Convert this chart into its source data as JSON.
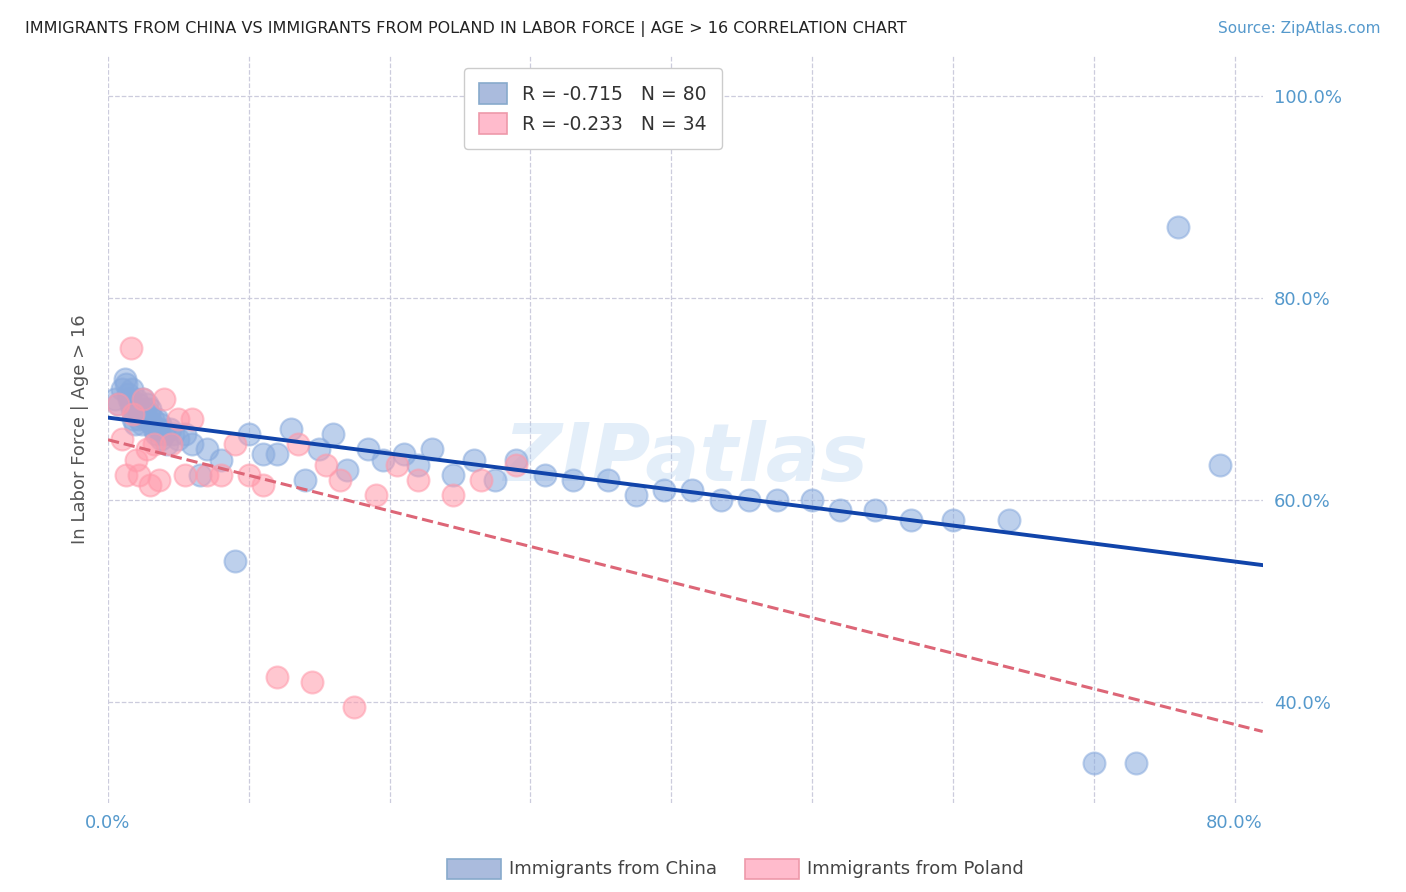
{
  "title": "IMMIGRANTS FROM CHINA VS IMMIGRANTS FROM POLAND IN LABOR FORCE | AGE > 16 CORRELATION CHART",
  "source": "Source: ZipAtlas.com",
  "ylabel": "In Labor Force | Age > 16",
  "xlim": [
    0.0,
    0.82
  ],
  "ylim": [
    0.3,
    1.04
  ],
  "china_R": -0.715,
  "china_N": 80,
  "poland_R": -0.233,
  "poland_N": 34,
  "china_scatter_color": "#88AADD",
  "poland_scatter_color": "#FF99AA",
  "line_china_color": "#1144AA",
  "line_poland_color": "#DD6677",
  "title_color": "#222222",
  "axis_tick_color": "#5599CC",
  "grid_color": "#CCCCDD",
  "watermark": "ZIPatlas",
  "watermark_color": "#AACCEE",
  "ytick_vals": [
    1.0,
    0.8,
    0.6,
    0.4
  ],
  "ytick_labels": [
    "100.0%",
    "80.0%",
    "60.0%",
    "40.0%"
  ],
  "xtick_vals": [
    0.0,
    0.1,
    0.2,
    0.3,
    0.4,
    0.5,
    0.6,
    0.7,
    0.8
  ],
  "xtick_labels": [
    "0.0%",
    "",
    "",
    "",
    "",
    "",
    "",
    "",
    "80.0%"
  ],
  "china_x": [
    0.005,
    0.007,
    0.01,
    0.012,
    0.013,
    0.014,
    0.015,
    0.016,
    0.017,
    0.017,
    0.018,
    0.019,
    0.02,
    0.02,
    0.021,
    0.022,
    0.022,
    0.023,
    0.024,
    0.025,
    0.026,
    0.027,
    0.028,
    0.029,
    0.03,
    0.031,
    0.032,
    0.033,
    0.034,
    0.035,
    0.036,
    0.037,
    0.038,
    0.04,
    0.042,
    0.044,
    0.046,
    0.05,
    0.055,
    0.06,
    0.065,
    0.07,
    0.08,
    0.09,
    0.1,
    0.11,
    0.12,
    0.13,
    0.14,
    0.15,
    0.16,
    0.17,
    0.185,
    0.195,
    0.21,
    0.22,
    0.23,
    0.245,
    0.26,
    0.275,
    0.29,
    0.31,
    0.33,
    0.355,
    0.375,
    0.395,
    0.415,
    0.435,
    0.455,
    0.475,
    0.5,
    0.52,
    0.545,
    0.57,
    0.6,
    0.64,
    0.7,
    0.73,
    0.76,
    0.79
  ],
  "china_y": [
    0.7,
    0.695,
    0.71,
    0.72,
    0.715,
    0.705,
    0.7,
    0.695,
    0.71,
    0.69,
    0.68,
    0.675,
    0.7,
    0.685,
    0.695,
    0.69,
    0.68,
    0.685,
    0.675,
    0.7,
    0.69,
    0.68,
    0.695,
    0.685,
    0.69,
    0.675,
    0.68,
    0.67,
    0.665,
    0.68,
    0.67,
    0.675,
    0.66,
    0.665,
    0.655,
    0.67,
    0.665,
    0.66,
    0.665,
    0.655,
    0.625,
    0.65,
    0.64,
    0.54,
    0.665,
    0.645,
    0.645,
    0.67,
    0.62,
    0.65,
    0.665,
    0.63,
    0.65,
    0.64,
    0.645,
    0.635,
    0.65,
    0.625,
    0.64,
    0.62,
    0.64,
    0.625,
    0.62,
    0.62,
    0.605,
    0.61,
    0.61,
    0.6,
    0.6,
    0.6,
    0.6,
    0.59,
    0.59,
    0.58,
    0.58,
    0.58,
    0.34,
    0.34,
    0.87,
    0.635
  ],
  "poland_x": [
    0.007,
    0.01,
    0.013,
    0.016,
    0.018,
    0.02,
    0.022,
    0.025,
    0.028,
    0.03,
    0.033,
    0.036,
    0.04,
    0.045,
    0.05,
    0.055,
    0.06,
    0.07,
    0.08,
    0.09,
    0.1,
    0.11,
    0.12,
    0.135,
    0.145,
    0.155,
    0.165,
    0.175,
    0.19,
    0.205,
    0.22,
    0.245,
    0.265,
    0.29
  ],
  "poland_y": [
    0.695,
    0.66,
    0.625,
    0.75,
    0.685,
    0.64,
    0.625,
    0.7,
    0.65,
    0.615,
    0.655,
    0.62,
    0.7,
    0.655,
    0.68,
    0.625,
    0.68,
    0.625,
    0.625,
    0.655,
    0.625,
    0.615,
    0.425,
    0.655,
    0.42,
    0.635,
    0.62,
    0.395,
    0.605,
    0.635,
    0.62,
    0.605,
    0.62,
    0.635
  ]
}
